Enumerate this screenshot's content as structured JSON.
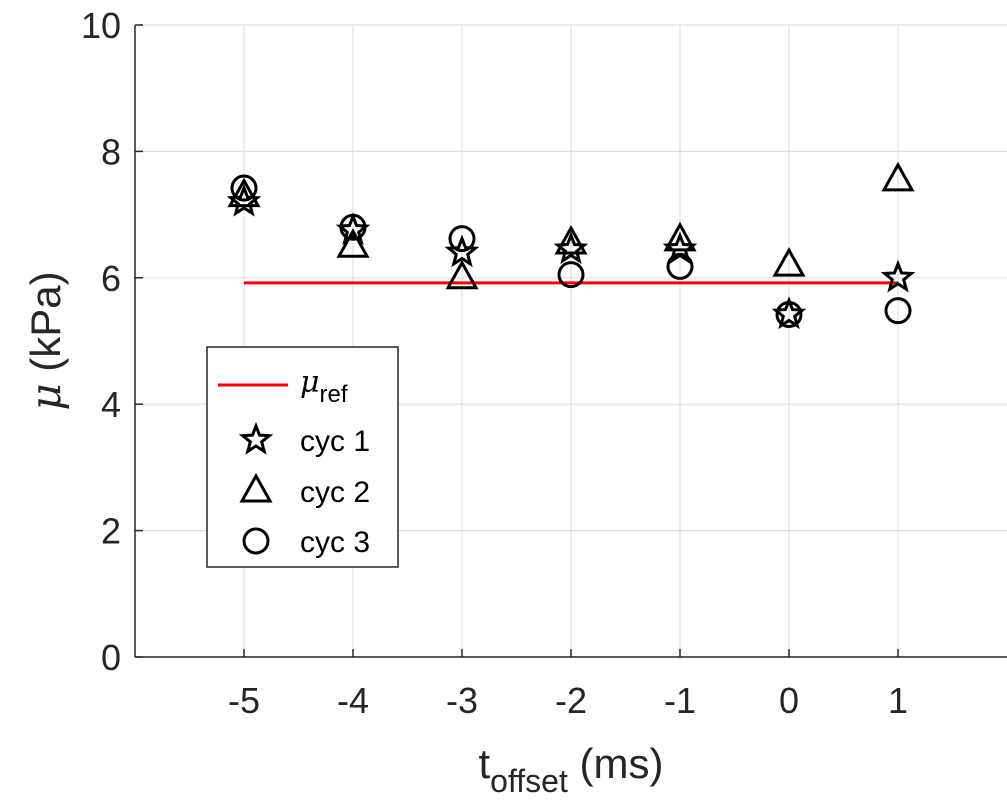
{
  "chart_data": {
    "type": "scatter",
    "xlabel": {
      "main": "t",
      "sub": "offset",
      "unit": " (ms)"
    },
    "ylabel": {
      "symbol": "μ",
      "unit": " (kPa)"
    },
    "xlim": [
      -6,
      2
    ],
    "ylim": [
      0,
      10
    ],
    "xticks": [
      -5,
      -4,
      -3,
      -2,
      -1,
      0,
      1
    ],
    "xtick_labels": [
      "-5",
      "-4",
      "-3",
      "-2",
      "-1",
      "0",
      "1"
    ],
    "yticks": [
      0,
      2,
      4,
      6,
      8,
      10
    ],
    "ytick_labels": [
      "0",
      "2",
      "4",
      "6",
      "8",
      "10"
    ],
    "grid": true,
    "legend_position": "left",
    "reference_line": {
      "symbol": "μ",
      "sub": "ref",
      "x": [
        -5,
        1
      ],
      "y": 5.92,
      "color": "#ff0000"
    },
    "series": [
      {
        "name": "cyc 1",
        "marker": "star",
        "x": [
          -5,
          -4,
          -3,
          -2,
          -1,
          0,
          1
        ],
        "y": [
          7.2,
          6.75,
          6.4,
          6.45,
          6.45,
          5.42,
          6.0
        ]
      },
      {
        "name": "cyc 2",
        "marker": "triangle",
        "x": [
          -5,
          -4,
          -3,
          -2,
          -1,
          0,
          1
        ],
        "y": [
          7.3,
          6.5,
          6.0,
          6.55,
          6.6,
          6.2,
          7.55
        ]
      },
      {
        "name": "cyc 3",
        "marker": "circle",
        "x": [
          -5,
          -4,
          -3,
          -2,
          -1,
          0,
          1
        ],
        "y": [
          7.42,
          6.8,
          6.62,
          6.05,
          6.18,
          5.42,
          5.48
        ]
      }
    ],
    "colors": {
      "axis": "#262626",
      "grid": "#dfdfdf",
      "marker": "#000000",
      "reference": "#ff0000"
    }
  }
}
